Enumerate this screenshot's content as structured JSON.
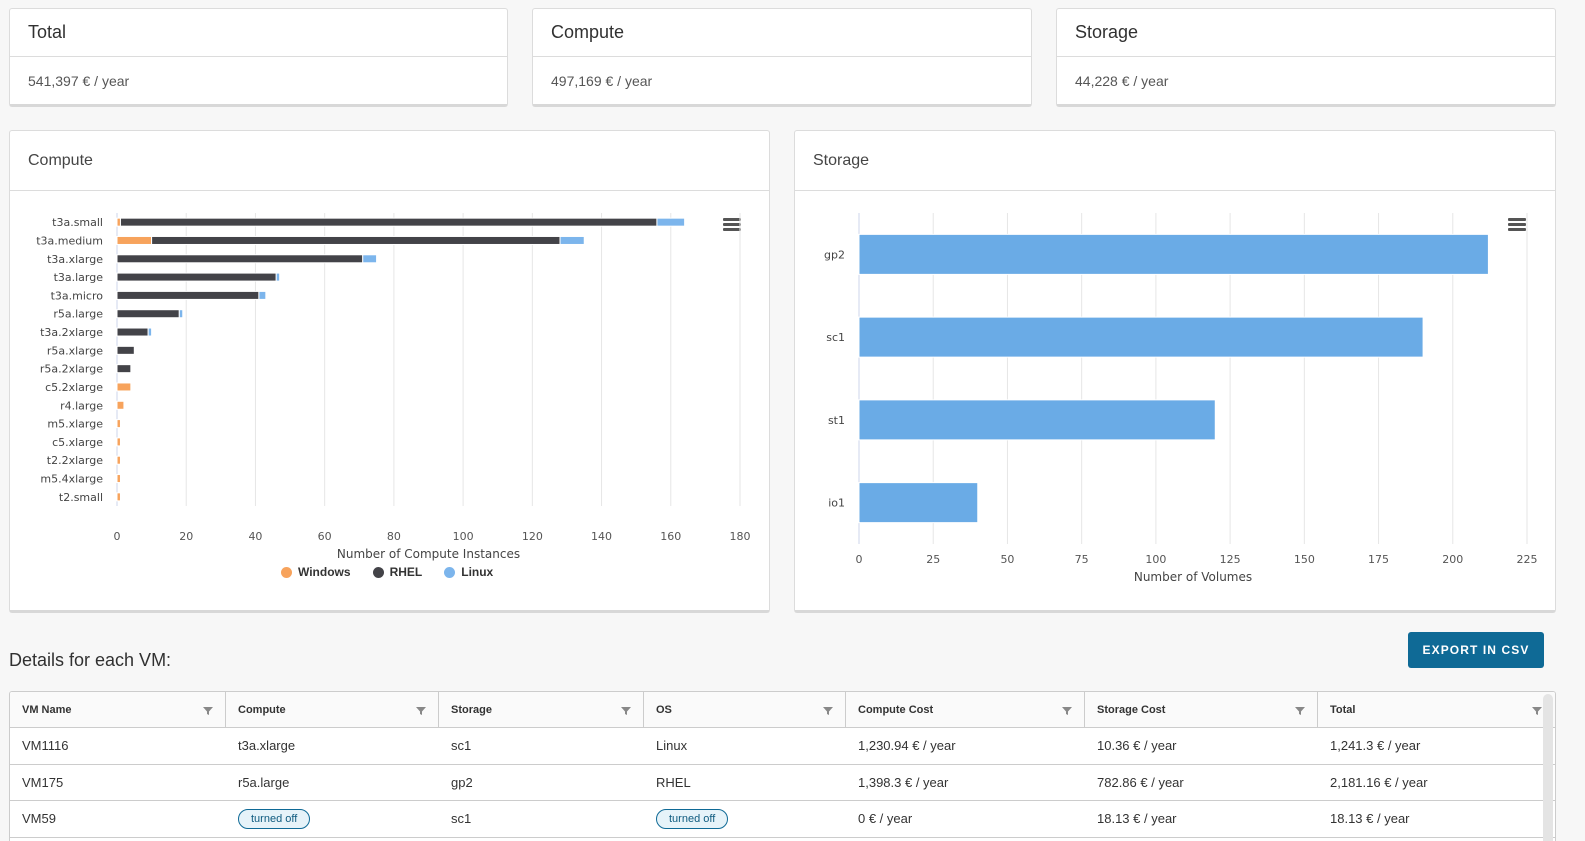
{
  "summary": {
    "total": {
      "title": "Total",
      "value": "541,397 € / year"
    },
    "compute": {
      "title": "Compute",
      "value": "497,169 € / year"
    },
    "storage": {
      "title": "Storage",
      "value": "44,228 € / year"
    }
  },
  "compute_panel": {
    "title": "Compute"
  },
  "storage_panel": {
    "title": "Storage"
  },
  "chart_data": [
    {
      "type": "bar",
      "orientation": "horizontal",
      "stacked": true,
      "categories": [
        "t3a.small",
        "t3a.medium",
        "t3a.xlarge",
        "t3a.large",
        "t3a.micro",
        "r5a.large",
        "t3a.2xlarge",
        "r5a.xlarge",
        "r5a.2xlarge",
        "c5.2xlarge",
        "r4.large",
        "m5.xlarge",
        "c5.xlarge",
        "t2.2xlarge",
        "m5.4xlarge",
        "t2.small"
      ],
      "series": [
        {
          "name": "Windows",
          "color": "#f7a35c",
          "values": [
            1,
            10,
            0,
            0,
            0,
            0,
            0,
            0,
            0,
            4,
            2,
            1,
            1,
            1,
            1,
            1
          ]
        },
        {
          "name": "RHEL",
          "color": "#434348",
          "values": [
            155,
            118,
            71,
            46,
            41,
            18,
            9,
            5,
            4,
            0,
            0,
            0,
            0,
            0,
            0,
            0
          ]
        },
        {
          "name": "Linux",
          "color": "#7cb5ec",
          "values": [
            8,
            7,
            4,
            1,
            2,
            1,
            1,
            0,
            0,
            0,
            0,
            0,
            0,
            0,
            0,
            0
          ]
        }
      ],
      "xlabel": "Number of Compute Instances",
      "xlim": [
        0,
        180
      ],
      "xticks": [
        0,
        20,
        40,
        60,
        80,
        100,
        120,
        140,
        160,
        180
      ],
      "grid": true,
      "legend": "bottom"
    },
    {
      "type": "bar",
      "orientation": "horizontal",
      "categories": [
        "gp2",
        "sc1",
        "st1",
        "io1"
      ],
      "series": [
        {
          "name": "",
          "color": "#6aabe6",
          "values": [
            212,
            190,
            120,
            40
          ]
        }
      ],
      "xlabel": "Number of Volumes",
      "xlim": [
        0,
        225
      ],
      "xticks": [
        0,
        25,
        50,
        75,
        100,
        125,
        150,
        175,
        200,
        225
      ],
      "grid": true,
      "legend": "none"
    }
  ],
  "details": {
    "title": "Details for each VM:",
    "export_label": "EXPORT IN CSV",
    "columns": [
      "VM Name",
      "Compute",
      "Storage",
      "OS",
      "Compute Cost",
      "Storage Cost",
      "Total"
    ],
    "rows": [
      {
        "vm": "VM1116",
        "compute": "t3a.xlarge",
        "storage": "sc1",
        "os": "Linux",
        "compute_cost": "1,230.94 € / year",
        "storage_cost": "10.36 € / year",
        "total": "1,241.3 € / year"
      },
      {
        "vm": "VM175",
        "compute": "r5a.large",
        "storage": "gp2",
        "os": "RHEL",
        "compute_cost": "1,398.3 € / year",
        "storage_cost": "782.86 € / year",
        "total": "2,181.16 € / year"
      },
      {
        "vm": "VM59",
        "compute": "turned off",
        "storage": "sc1",
        "os": "turned off",
        "compute_cost": "0 € / year",
        "storage_cost": "18.13 € / year",
        "total": "18.13 € / year"
      }
    ]
  },
  "icons": {
    "chart_menu": "hamburger-menu-icon",
    "column_filter": "filter-icon"
  }
}
